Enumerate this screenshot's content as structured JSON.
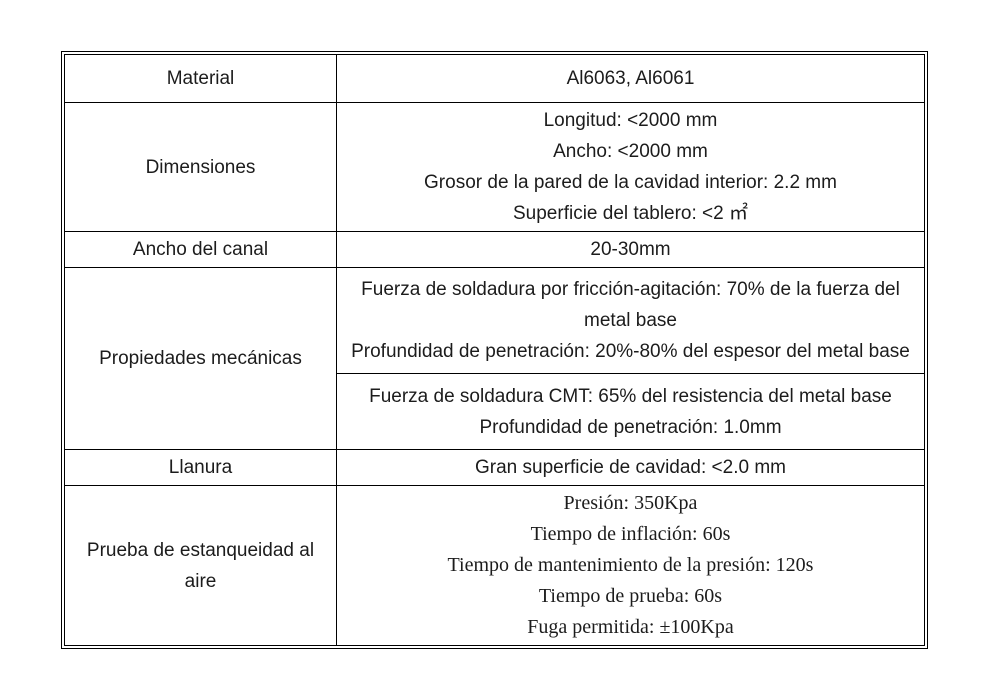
{
  "table": {
    "colors": {
      "border": "#000000",
      "text": "#1c1c1c",
      "background": "#ffffff"
    },
    "rows": {
      "material": {
        "label": "Material",
        "value": "Al6063, Al6061"
      },
      "dimensiones": {
        "label": "Dimensiones",
        "lines": [
          "Longitud: <2000 mm",
          "Ancho: <2000 mm",
          "Grosor de la pared de la cavidad interior: 2.2 mm",
          "Superficie del tablero: <2 ㎡"
        ]
      },
      "ancho_canal": {
        "label": "Ancho del canal",
        "value": "20-30mm"
      },
      "propiedades_mecanicas": {
        "label": "Propiedades mecánicas",
        "friccion_lines": [
          "Fuerza de soldadura por fricción-agitación: 70% de la fuerza del metal base",
          "Profundidad de penetración: 20%-80% del espesor del metal base"
        ],
        "cmt_lines": [
          "Fuerza de soldadura CMT: 65% del resistencia del metal base",
          "Profundidad de penetración: 1.0mm"
        ]
      },
      "llanura": {
        "label": "Llanura",
        "value": "Gran superficie de cavidad: <2.0 mm"
      },
      "prueba_estanqueidad": {
        "label": "Prueba de estanqueidad al aire",
        "lines": [
          "Presión: 350Kpa",
          "Tiempo de inflación: 60s",
          "Tiempo de mantenimiento de la presión: 120s",
          "Tiempo de prueba: 60s",
          "Fuga permitida: ±100Kpa"
        ]
      }
    }
  }
}
